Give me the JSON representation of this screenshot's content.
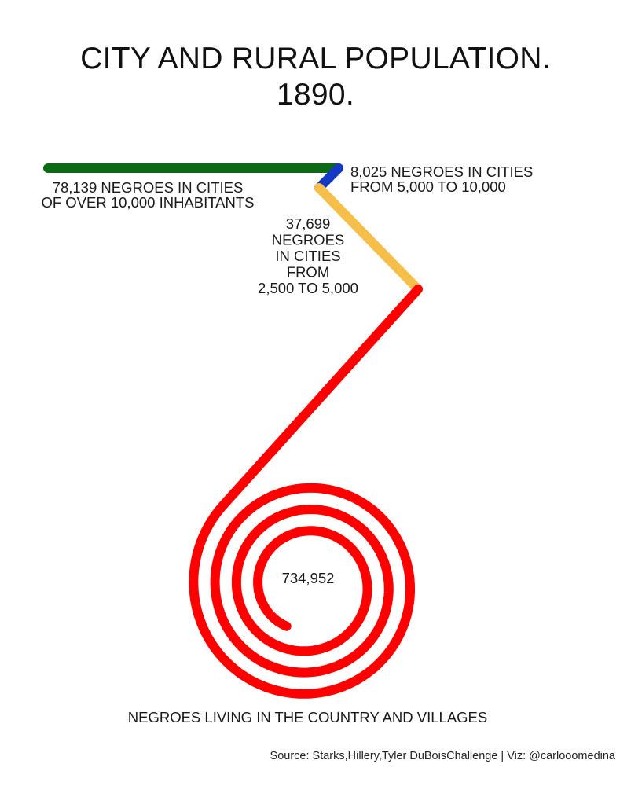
{
  "title": {
    "line1": "CITY AND RURAL POPULATION.",
    "line2": "1890."
  },
  "chart_data": {
    "type": "spiral",
    "series": [
      {
        "name": "Cities over 10,000",
        "value": 78139,
        "color": "#0a6b14",
        "label_lines": [
          "78,139 NEGROES IN CITIES",
          "OF OVER 10,000 INHABITANTS"
        ]
      },
      {
        "name": "Cities 5,000 to 10,000",
        "value": 8025,
        "color": "#1339c5",
        "label_lines": [
          "8,025 NEGROES IN CITIES",
          "FROM 5,000 TO 10,000"
        ]
      },
      {
        "name": "Cities 2,500 to 5,000",
        "value": 37699,
        "color": "#f6bf4a",
        "label_lines": [
          "37,699",
          "NEGROES",
          "IN CITIES",
          "FROM",
          "2,500 TO 5,000"
        ]
      },
      {
        "name": "Country and villages",
        "value": 734952,
        "color": "#ff0000",
        "value_label": "734,952",
        "label": "NEGROES LIVING IN THE COUNTRY AND VILLAGES"
      }
    ]
  },
  "source": "Source: Starks,Hillery,Tyler DuBoisChallenge | Viz: @carlooomedina"
}
